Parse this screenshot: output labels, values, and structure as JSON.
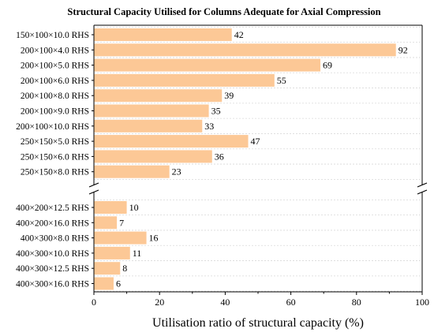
{
  "chart_data": {
    "type": "bar",
    "orientation": "horizontal",
    "title": "Structural Capacity Utilised for Columns Adequate for Axial Compression",
    "xlabel": "Utilisation ratio of structural capacity (%)",
    "ylabel": "",
    "xlim": [
      0,
      100
    ],
    "xticks": [
      "0",
      "20",
      "40",
      "60",
      "80",
      "100"
    ],
    "axis_break": "between 250×150×8.0 RHS and 400×200×12.5 RHS",
    "grid": "horizontal dashed",
    "bar_color": "#fcc896",
    "groups": [
      {
        "categories": [
          "150×100×10.0 RHS",
          "200×100×4.0 RHS",
          "200×100×5.0 RHS",
          "200×100×6.0 RHS",
          "200×100×8.0 RHS",
          "200×100×9.0 RHS",
          "200×100×10.0 RHS",
          "250×150×5.0 RHS",
          "250×150×6.0 RHS",
          "250×150×8.0 RHS"
        ],
        "values": [
          42,
          92,
          69,
          55,
          39,
          35,
          33,
          47,
          36,
          23
        ]
      },
      {
        "categories": [
          "400×200×12.5 RHS",
          "400×200×16.0 RHS",
          "400×300×8.0 RHS",
          "400×300×10.0 RHS",
          "400×300×12.5 RHS",
          "400×300×16.0 RHS"
        ],
        "values": [
          10,
          7,
          16,
          11,
          8,
          6
        ]
      }
    ]
  }
}
